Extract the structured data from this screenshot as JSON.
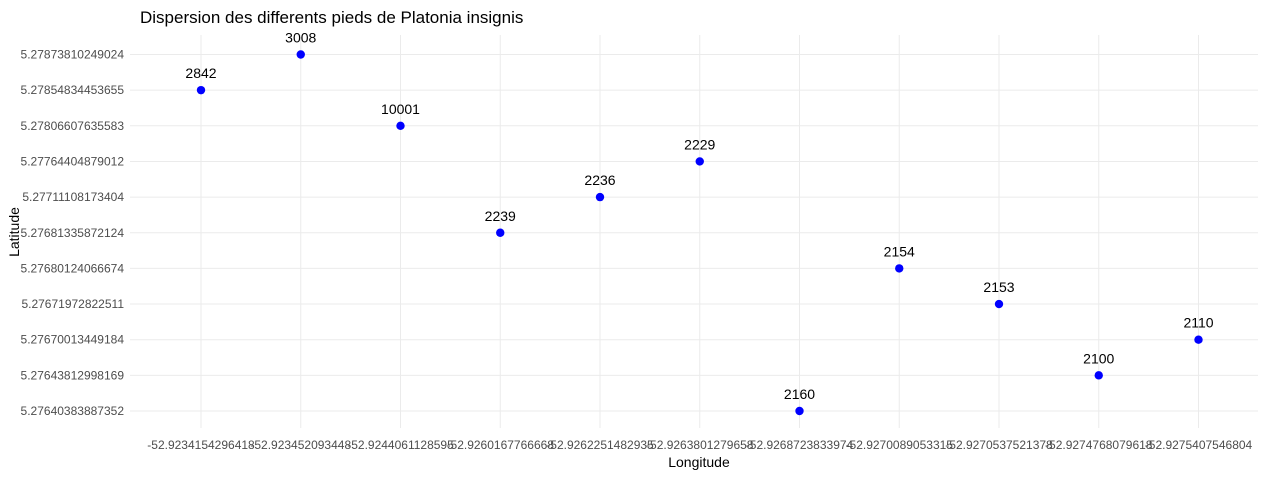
{
  "chart_data": {
    "type": "scatter",
    "title": "Dispersion des differents pieds de Platonia insignis",
    "xlabel": "Longitude",
    "ylabel": "Latitude",
    "x_categories": [
      "-52.9234154296418",
      "-52.923452093448",
      "-52.9244061128595",
      "-52.9260167766668",
      "-52.9262251482935",
      "-52.9263801279658",
      "-52.9268723833974",
      "-52.9270089053315",
      "-52.9270537521378",
      "-52.9274768079618",
      "-52.9275407546804"
    ],
    "y_categories": [
      "5.27640383887352",
      "5.27643812998169",
      "5.27670013449184",
      "5.27671972822511",
      "5.27680124066674",
      "5.27681335872124",
      "5.27711108173404",
      "5.27764404879012",
      "5.27806607635583",
      "5.27854834453655",
      "5.27873810249024"
    ],
    "points": [
      {
        "x": "-52.9234154296418",
        "y": "5.27854834453655",
        "label": "2842"
      },
      {
        "x": "-52.923452093448",
        "y": "5.27873810249024",
        "label": "3008"
      },
      {
        "x": "-52.9244061128595",
        "y": "5.27806607635583",
        "label": "10001"
      },
      {
        "x": "-52.9260167766668",
        "y": "5.27681335872124",
        "label": "2239"
      },
      {
        "x": "-52.9262251482935",
        "y": "5.27711108173404",
        "label": "2236"
      },
      {
        "x": "-52.9263801279658",
        "y": "5.27764404879012",
        "label": "2229"
      },
      {
        "x": "-52.9268723833974",
        "y": "5.27640383887352",
        "label": "2160"
      },
      {
        "x": "-52.9270089053315",
        "y": "5.27680124066674",
        "label": "2154"
      },
      {
        "x": "-52.9270537521378",
        "y": "5.27671972822511",
        "label": "2153"
      },
      {
        "x": "-52.9274768079618",
        "y": "5.27643812998169",
        "label": "2100"
      },
      {
        "x": "-52.9275407546804",
        "y": "5.27670013449184",
        "label": "2110"
      }
    ],
    "grid": true,
    "legend": "none",
    "point_color": "#0000ff"
  }
}
